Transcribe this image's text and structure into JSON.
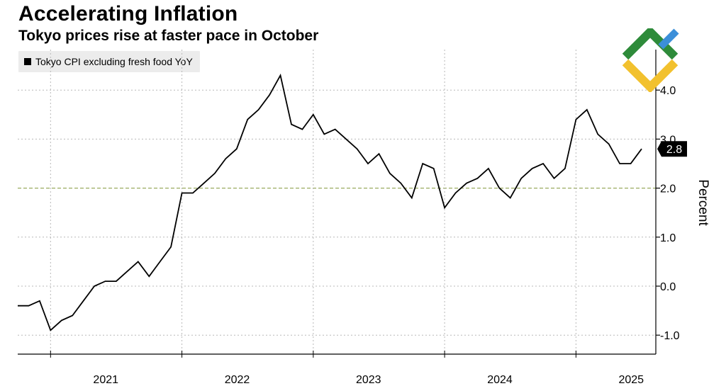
{
  "header": {
    "title": "Accelerating Inflation",
    "subtitle": "Tokyo prices rise at faster pace in October"
  },
  "legend": {
    "label": "Tokyo CPI excluding fresh food YoY"
  },
  "logo": {
    "name": "brand-logo"
  },
  "colors": {
    "line": "#000000",
    "grid": "#b8b8b8",
    "target": "#9aaa60",
    "logo_green": "#2e8b3a",
    "logo_yellow": "#f2c12e",
    "logo_blue": "#3b8fd9"
  },
  "chart_data": {
    "type": "line",
    "title": "Accelerating Inflation",
    "subtitle": "Tokyo prices rise at faster pace in October",
    "xlabel": "",
    "ylabel": "Percent",
    "ylim": [
      -1.4,
      4.95
    ],
    "yticks": [
      -1.0,
      0.0,
      1.0,
      2.0,
      3.0,
      4.0
    ],
    "ytick_labels": [
      "-1.0",
      "0.0",
      "1.0",
      "2.0",
      "3.0",
      "4.0"
    ],
    "year_ticks": [
      2021,
      2022,
      2023,
      2024,
      2025
    ],
    "year_labels": [
      "2021",
      "2022",
      "2023",
      "2024",
      "2025"
    ],
    "x_start": "2020-10",
    "target_line": 2.0,
    "last_value_label": "2.8",
    "series": [
      {
        "name": "Tokyo CPI excluding fresh food YoY",
        "values": [
          -0.4,
          -0.4,
          -0.3,
          -0.9,
          -0.7,
          -0.6,
          -0.3,
          0.0,
          0.1,
          0.1,
          0.3,
          0.5,
          0.2,
          0.5,
          0.8,
          1.9,
          1.9,
          2.1,
          2.3,
          2.6,
          2.8,
          3.4,
          3.6,
          3.9,
          4.3,
          3.3,
          3.2,
          3.5,
          3.1,
          3.2,
          3.0,
          2.8,
          2.5,
          2.7,
          2.3,
          2.1,
          1.8,
          2.5,
          2.4,
          1.6,
          1.9,
          2.1,
          2.2,
          2.4,
          2.0,
          1.8,
          2.2,
          2.4,
          2.5,
          2.2,
          2.4,
          3.4,
          3.6,
          3.1,
          2.9,
          2.5,
          2.5,
          2.8
        ]
      }
    ]
  }
}
